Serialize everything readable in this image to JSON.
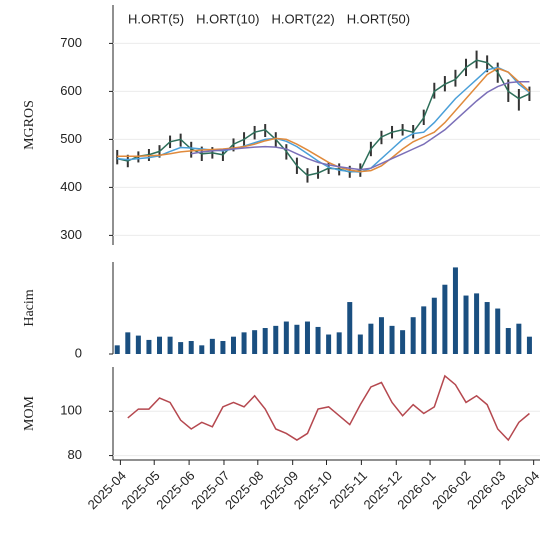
{
  "chart_data": [
    {
      "type": "candlestick",
      "ylabel": "MGROS",
      "ylim": [
        280,
        780
      ],
      "yticks": [
        300,
        400,
        500,
        600,
        700
      ],
      "grid": true,
      "candle_color": "#333333",
      "high": [
        478,
        468,
        475,
        480,
        488,
        508,
        512,
        495,
        485,
        484,
        480,
        502,
        515,
        528,
        532,
        515,
        490,
        462,
        440,
        445,
        452,
        450,
        445,
        450,
        495,
        518,
        528,
        532,
        530,
        562,
        618,
        632,
        645,
        668,
        685,
        675,
        660,
        625,
        605,
        610
      ],
      "low": [
        448,
        442,
        452,
        455,
        462,
        482,
        485,
        462,
        455,
        460,
        455,
        475,
        485,
        500,
        505,
        485,
        458,
        428,
        410,
        418,
        428,
        425,
        420,
        422,
        465,
        490,
        502,
        508,
        502,
        530,
        585,
        600,
        610,
        632,
        648,
        640,
        618,
        578,
        560,
        580
      ],
      "series": [
        {
          "name": "H.ORT(5)",
          "color": "#2e6f5a",
          "values": [
            460,
            455,
            465,
            468,
            475,
            495,
            500,
            480,
            470,
            472,
            468,
            490,
            500,
            515,
            520,
            500,
            475,
            445,
            425,
            430,
            440,
            438,
            432,
            435,
            480,
            505,
            515,
            520,
            515,
            545,
            600,
            615,
            625,
            650,
            665,
            660,
            640,
            600,
            585,
            595
          ]
        },
        {
          "name": "H.ORT(10)",
          "color": "#4a9fd8",
          "values": [
            460,
            458,
            460,
            462,
            466,
            475,
            483,
            482,
            480,
            478,
            476,
            480,
            486,
            493,
            500,
            502,
            496,
            485,
            470,
            455,
            442,
            436,
            433,
            432,
            440,
            460,
            480,
            500,
            512,
            515,
            535,
            560,
            585,
            605,
            625,
            645,
            650,
            640,
            615,
            598
          ]
        },
        {
          "name": "H.ORT(22)",
          "color": "#e08a3c",
          "values": [
            465,
            465,
            465,
            466,
            467,
            470,
            474,
            476,
            478,
            479,
            480,
            482,
            485,
            490,
            497,
            502,
            500,
            490,
            478,
            465,
            452,
            442,
            436,
            433,
            435,
            445,
            462,
            480,
            495,
            505,
            515,
            535,
            560,
            585,
            610,
            635,
            648,
            640,
            620,
            600
          ]
        },
        {
          "name": "H.ORT(50)",
          "color": "#7b6fb8",
          "values": [
            null,
            null,
            null,
            null,
            null,
            null,
            null,
            470,
            474,
            476,
            478,
            480,
            482,
            484,
            485,
            484,
            480,
            470,
            460,
            452,
            447,
            443,
            440,
            437,
            440,
            450,
            460,
            470,
            480,
            490,
            505,
            520,
            540,
            560,
            580,
            598,
            610,
            618,
            620,
            620
          ]
        }
      ]
    },
    {
      "type": "bar",
      "ylabel": "Hacim",
      "ylim": [
        0,
        85
      ],
      "yticks": [
        0
      ],
      "color": "#1a4f80",
      "values": [
        8,
        20,
        17,
        13,
        16,
        16,
        11,
        12,
        8,
        14,
        12,
        16,
        20,
        22,
        24,
        26,
        30,
        27,
        30,
        25,
        18,
        20,
        48,
        18,
        28,
        34,
        26,
        22,
        34,
        44,
        52,
        64,
        80,
        54,
        56,
        48,
        42,
        24,
        28,
        16
      ]
    },
    {
      "type": "line",
      "ylabel": "MOM",
      "ylim": [
        78,
        120
      ],
      "yticks": [
        80,
        100
      ],
      "grid": true,
      "color": "#b5484f",
      "values": [
        null,
        97,
        101,
        101,
        106,
        104,
        96,
        92,
        95,
        93,
        102,
        104,
        102,
        107,
        101,
        92,
        90,
        87,
        90,
        101,
        102,
        98,
        94,
        103,
        111,
        113,
        104,
        98,
        103,
        99,
        102,
        116,
        112,
        104,
        107,
        103,
        92,
        87,
        95,
        99
      ],
      "x": [
        0,
        1,
        2,
        3,
        4,
        5,
        6,
        7,
        8,
        9,
        10,
        11,
        12,
        13,
        14,
        15,
        16,
        17,
        18,
        19,
        20,
        21,
        22,
        23,
        24,
        25,
        26,
        27,
        28,
        29,
        30,
        31,
        32,
        33,
        34,
        35,
        36,
        37,
        38,
        39
      ],
      "xlim": [
        -0.4,
        40
      ],
      "xticks": [
        {
          "value": 0.3,
          "label": "2025-04"
        },
        {
          "value": 3.5,
          "label": "2025-05"
        },
        {
          "value": 6.8,
          "label": "2025-06"
        },
        {
          "value": 10.1,
          "label": "2025-07"
        },
        {
          "value": 13.3,
          "label": "2025-08"
        },
        {
          "value": 16.6,
          "label": "2025-09"
        },
        {
          "value": 19.8,
          "label": "2025-10"
        },
        {
          "value": 23.1,
          "label": "2025-11"
        },
        {
          "value": 26.4,
          "label": "2025-12"
        },
        {
          "value": 29.6,
          "label": "2026-01"
        },
        {
          "value": 32.9,
          "label": "2026-02"
        },
        {
          "value": 36.2,
          "label": "2026-03"
        },
        {
          "value": 39.4,
          "label": "2026-04"
        }
      ]
    }
  ]
}
